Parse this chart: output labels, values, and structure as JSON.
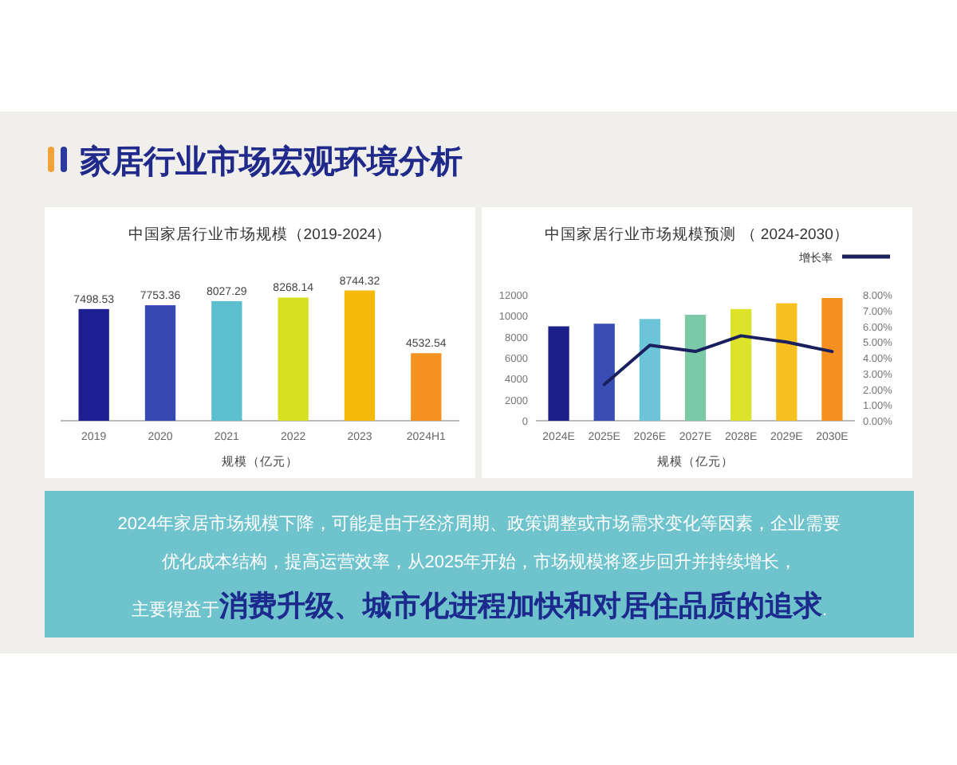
{
  "chart_data": [
    {
      "type": "other",
      "title": "家居行业市场宏观环境分析"
    },
    {
      "type": "bar",
      "title": "中国家居行业市场规模（2019-2024）",
      "xlabel": "规模（亿元）",
      "categories": [
        "2019",
        "2020",
        "2021",
        "2022",
        "2023",
        "2024H1"
      ],
      "values": [
        7498.53,
        7753.36,
        8027.29,
        8268.14,
        8744.32,
        4532.54
      ],
      "colors": [
        "#1c1f8f",
        "#3848b2",
        "#5cbfcf",
        "#d6e021",
        "#f4b90a",
        "#f5911e"
      ],
      "data_labels": true
    },
    {
      "type": "bar",
      "title": "中国家居行业市场规模预测 （ 2024-2030）",
      "xlabel": "规模（亿元）",
      "categories": [
        "2024E",
        "2025E",
        "2026E",
        "2027E",
        "2028E",
        "2029E",
        "2030E"
      ],
      "ylim": [
        0,
        12000
      ],
      "yticks": [
        0,
        2000,
        4000,
        6000,
        8000,
        10000,
        12000
      ],
      "y2lim": [
        0,
        8
      ],
      "y2ticks": [
        {
          "value": 0,
          "label": "0.00%"
        },
        {
          "value": 1,
          "label": "1.00%"
        },
        {
          "value": 2,
          "label": "2.00%"
        },
        {
          "value": 3,
          "label": "3.00%"
        },
        {
          "value": 4,
          "label": "4.00%"
        },
        {
          "value": 5,
          "label": "5.00%"
        },
        {
          "value": 6,
          "label": "6.00%"
        },
        {
          "value": 7,
          "label": "7.00%"
        },
        {
          "value": 8,
          "label": "8.00%"
        }
      ],
      "legend": "top right",
      "series": [
        {
          "type": "bar",
          "colors": [
            "#1b1f8a",
            "#3a4db5",
            "#6cc4d8",
            "#7cc9a8",
            "#dde22a",
            "#f5c020",
            "#f59020"
          ],
          "values": [
            9000,
            9250,
            9700,
            10100,
            10650,
            11200,
            11700
          ]
        },
        {
          "type": "line",
          "name": "增长率",
          "color": "#1a1f5e",
          "axis": "y2",
          "values": [
            null,
            2.3,
            4.8,
            4.4,
            5.4,
            5.0,
            4.4
          ]
        }
      ]
    },
    {
      "type": "other",
      "annotations": [
        "2024年家居市场规模下降，可能是由于经济周期、政策调整或市场需求变化等因素，企业需要",
        "优化成本结构，提高运营效率，从2025年开始，市场规模将逐步回升并持续增长，",
        "主要得益于**消费升级、城市化进程加快和对居住品质的追求**."
      ]
    }
  ]
}
